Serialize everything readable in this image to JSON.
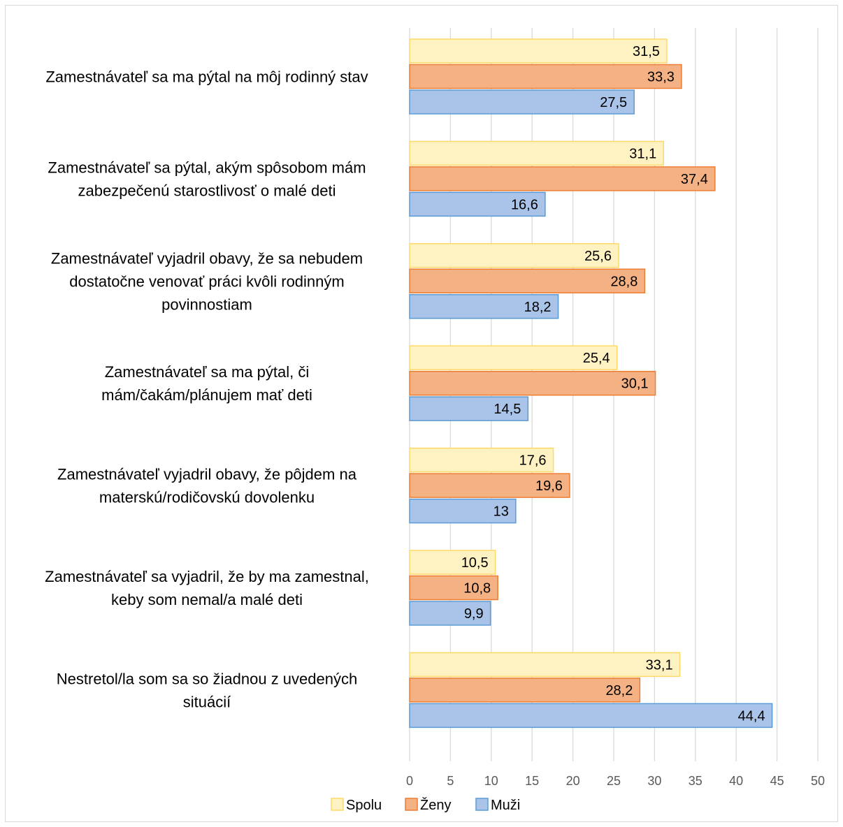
{
  "chart_data": {
    "type": "bar",
    "orientation": "horizontal",
    "categories": [
      [
        "Zamestnávateľ sa ma pýtal na môj rodinný stav"
      ],
      [
        "Zamestnávateľ sa pýtal, akým spôsobom mám",
        "zabezpečenú starostlivosť o malé deti"
      ],
      [
        "Zamestnávateľ vyjadril obavy, že sa nebudem",
        "dostatočne venovať práci kvôli rodinným",
        "povinnostiam"
      ],
      [
        "Zamestnávateľ sa ma pýtal, či",
        "mám/čakám/plánujem mať deti"
      ],
      [
        "Zamestnávateľ vyjadril obavy, že pôjdem na",
        "materskú/rodičovskú dovolenku"
      ],
      [
        "Zamestnávateľ sa vyjadril, že by ma zamestnal,",
        "keby som nemal/a malé deti"
      ],
      [
        "Nestretol/la som sa so žiadnou z uvedených",
        "situácií"
      ]
    ],
    "series": [
      {
        "name": "Spolu",
        "values": [
          31.5,
          31.1,
          25.6,
          25.4,
          17.6,
          10.5,
          33.1
        ],
        "labels": [
          "31,5",
          "31,1",
          "25,6",
          "25,4",
          "17,6",
          "10,5",
          "33,1"
        ],
        "fill": "#fff2c2",
        "stroke": "#ffd966"
      },
      {
        "name": "Ženy",
        "values": [
          33.3,
          37.4,
          28.8,
          30.1,
          19.6,
          10.8,
          28.2
        ],
        "labels": [
          "33,3",
          "37,4",
          "28,8",
          "30,1",
          "19,6",
          "10,8",
          "28,2"
        ],
        "fill": "#f4b183",
        "stroke": "#ed7d31"
      },
      {
        "name": "Muži",
        "values": [
          27.5,
          16.6,
          18.2,
          14.5,
          13,
          9.9,
          44.4
        ],
        "labels": [
          "27,5",
          "16,6",
          "18,2",
          "14,5",
          "13",
          "9,9",
          "44,4"
        ],
        "fill": "#a9c4e8",
        "stroke": "#5b9bd5"
      }
    ],
    "xlim": [
      0,
      50
    ],
    "xticks": [
      0,
      5,
      10,
      15,
      20,
      25,
      30,
      35,
      40,
      45,
      50
    ],
    "grid": "vertical",
    "legend": "bottom",
    "gridColor": "#d9d9d9"
  }
}
